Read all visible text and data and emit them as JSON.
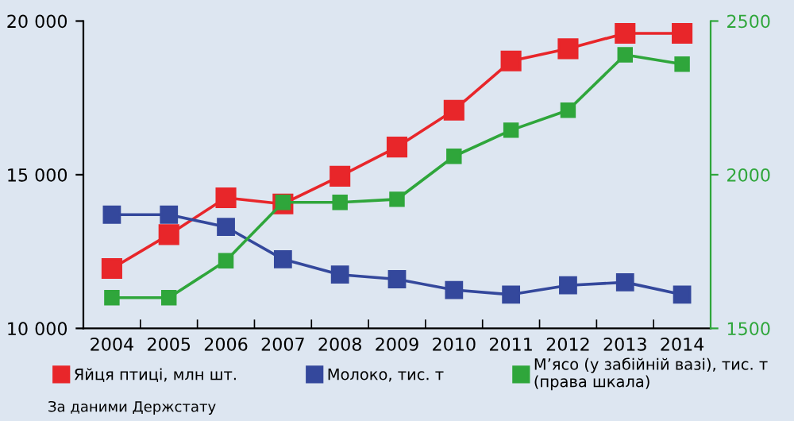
{
  "chart_data": {
    "type": "line",
    "categories": [
      "2004",
      "2005",
      "2006",
      "2007",
      "2008",
      "2009",
      "2010",
      "2011",
      "2012",
      "2013",
      "2014"
    ],
    "series": [
      {
        "name": "Яйця птиці, млн шт.",
        "color": "#e8262a",
        "values": [
          11950,
          13050,
          14250,
          14050,
          14950,
          15900,
          17100,
          18700,
          19100,
          19600,
          19600
        ]
      },
      {
        "name": "Молоко, тис. т",
        "color": "#34489c",
        "values": [
          13700,
          13700,
          13300,
          12250,
          11750,
          11600,
          11250,
          11100,
          11400,
          11500,
          11100
        ]
      },
      {
        "name": "М’ясо (у забійній вазі), тис. т\n(права шкала)",
        "color": "#2fa63b",
        "axis": "y2",
        "values": [
          1600,
          1600,
          1720,
          1910,
          1910,
          1920,
          2060,
          2145,
          2210,
          2390,
          2360
        ]
      }
    ],
    "ylim": [
      10000,
      20000
    ],
    "yticks": [
      {
        "value": 10000,
        "label": "10 000"
      },
      {
        "value": 15000,
        "label": "15 000"
      },
      {
        "value": 20000,
        "label": "20 000"
      }
    ],
    "y2lim": [
      1500,
      2500
    ],
    "y2ticks": [
      1500,
      2000,
      2500
    ],
    "marker": "square",
    "line_style": "solid",
    "grid": false,
    "legend": "bottom",
    "annotations": [
      "За даними Держстату"
    ]
  }
}
